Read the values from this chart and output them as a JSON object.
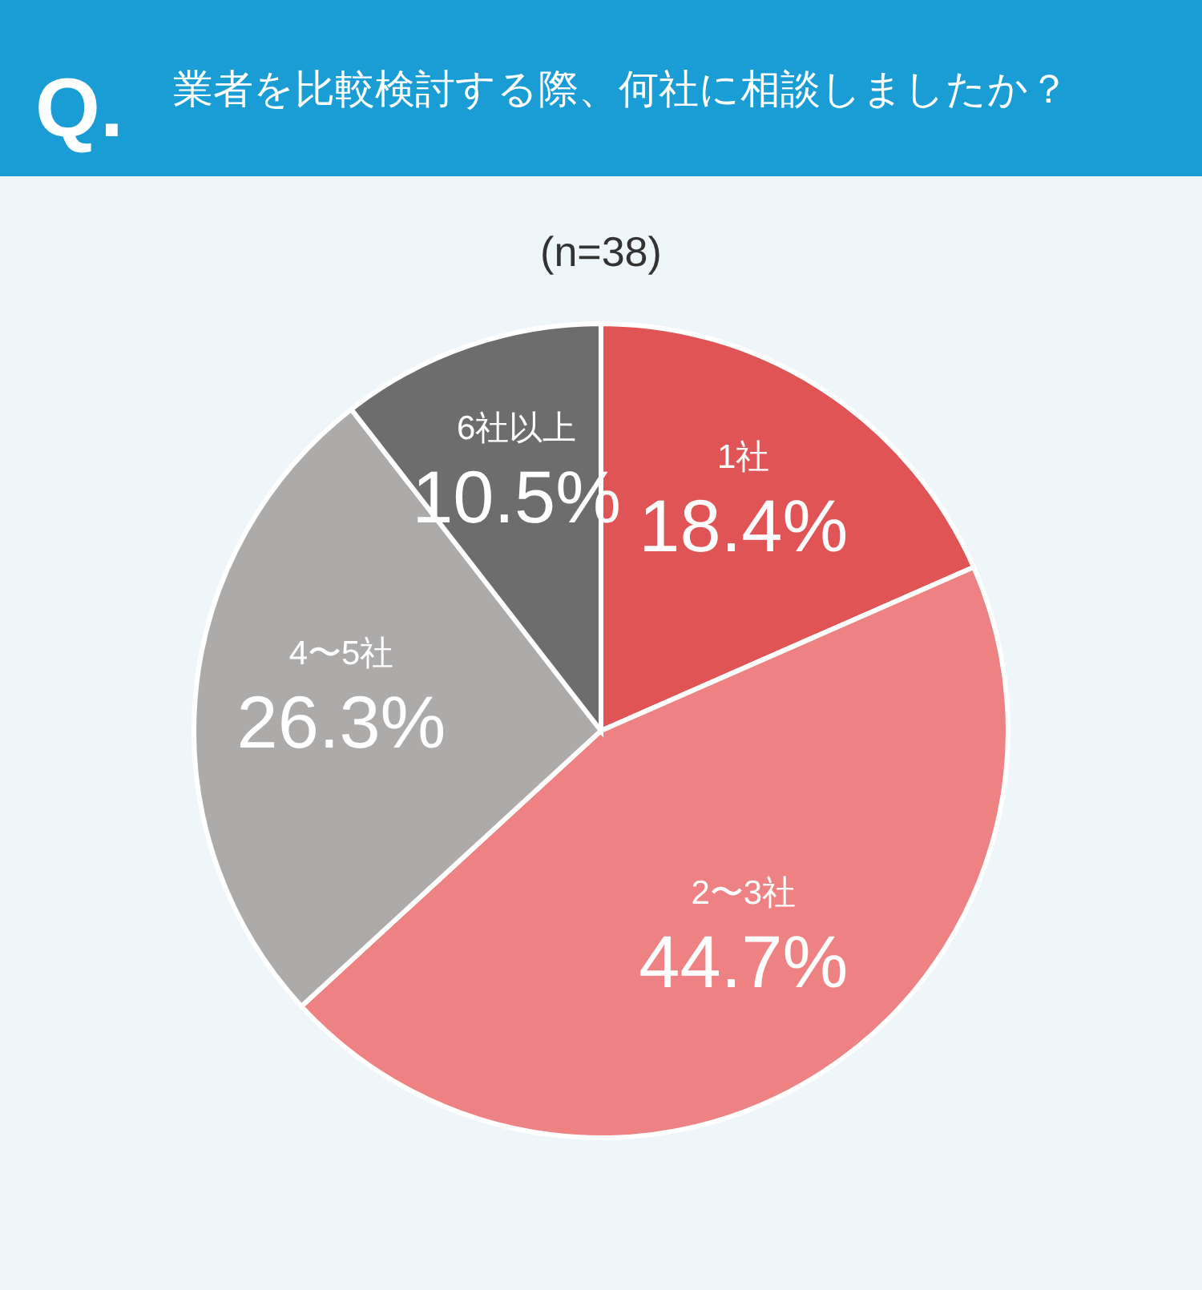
{
  "chart_data": {
    "type": "pie",
    "title": "業者を比較検討する際、何社に相談しましたか？",
    "subtitle": "(n=38)",
    "annotations": [
      "Q."
    ],
    "categories": [
      "1社",
      "2〜3社",
      "4〜5社",
      "6社以上"
    ],
    "values": [
      18.4,
      44.7,
      26.3,
      10.5
    ],
    "value_labels": [
      "18.4%",
      "44.7%",
      "26.3%",
      "10.5%"
    ],
    "colors": [
      "#e05455",
      "#ee8282",
      "#adaaaa",
      "#6e6d6d"
    ]
  }
}
